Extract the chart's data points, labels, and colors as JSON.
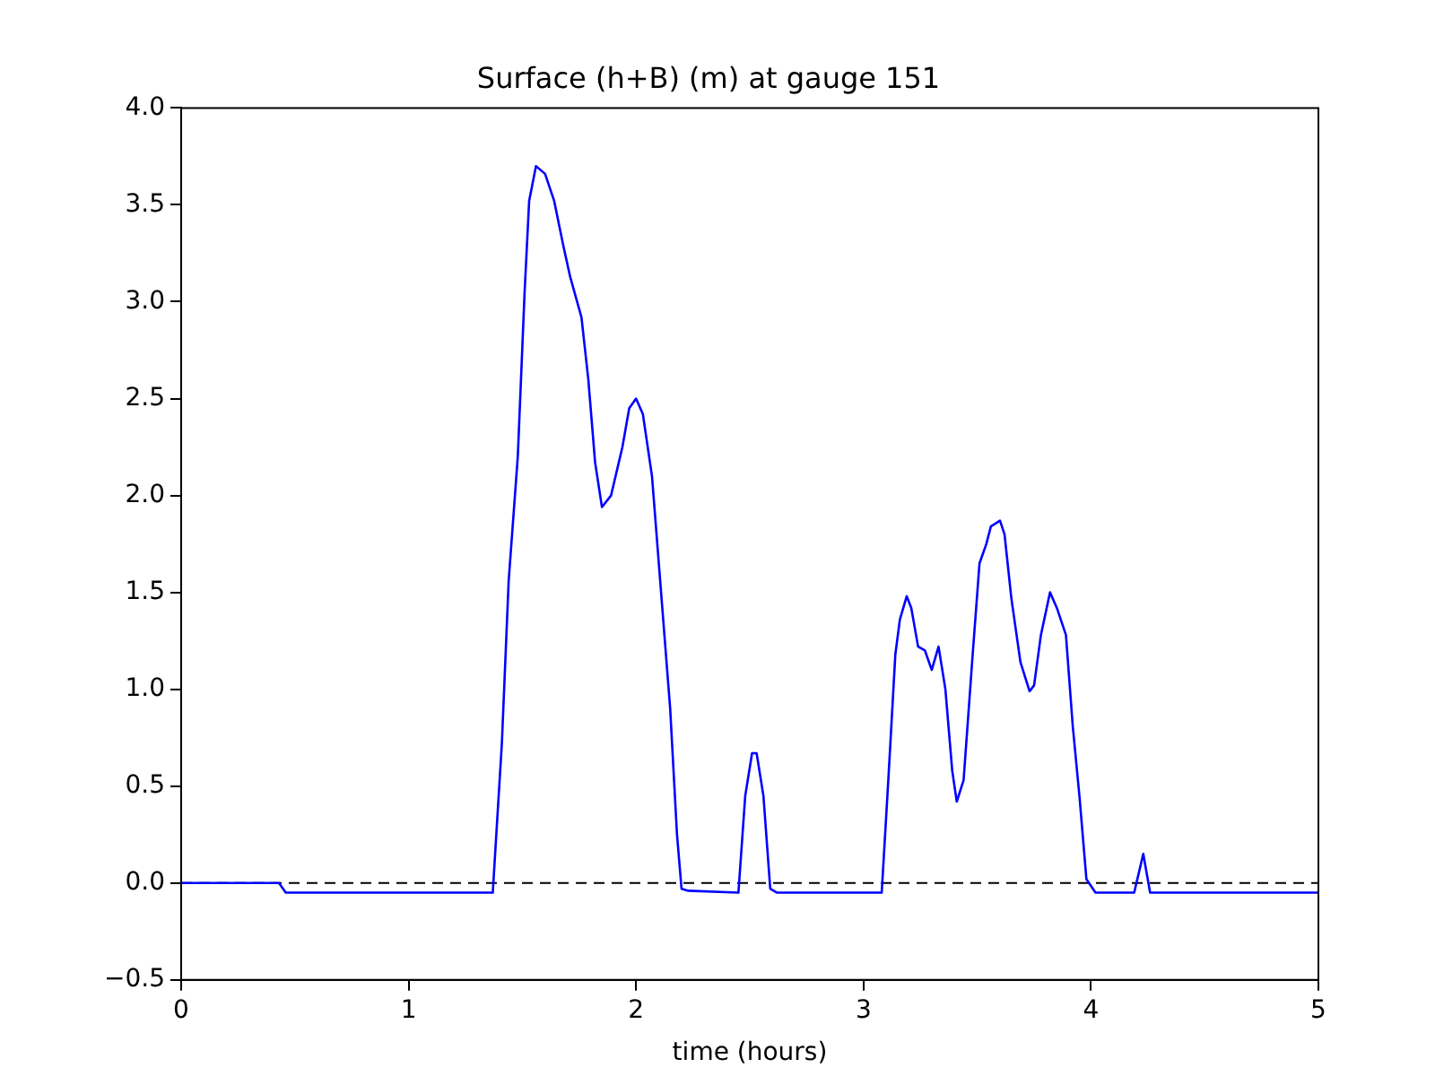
{
  "chart_data": {
    "type": "line",
    "title": "Surface (h+B) (m) at gauge 151",
    "xlabel": "time (hours)",
    "xlim": [
      0,
      5
    ],
    "xticks": [
      0,
      1,
      2,
      3,
      4,
      5
    ],
    "ylim": [
      -0.5,
      4.0
    ],
    "yticks": [
      {
        "value": -0.5,
        "label": "−0.5"
      },
      {
        "value": 0,
        "label": "0.0"
      },
      {
        "value": 0.5,
        "label": "0.5"
      },
      {
        "value": 1,
        "label": "1.0"
      },
      {
        "value": 1.5,
        "label": "1.5"
      },
      {
        "value": 2,
        "label": "2.0"
      },
      {
        "value": 2.5,
        "label": "2.5"
      },
      {
        "value": 3,
        "label": "3.0"
      },
      {
        "value": 3.5,
        "label": "3.5"
      },
      {
        "value": 4,
        "label": "4.0"
      }
    ],
    "grid": false,
    "legend": false,
    "marker": "none",
    "line_style": "solid",
    "ref_lines": [
      {
        "axis": "y",
        "value": 0,
        "color": "#000000",
        "line_style": "dashed"
      }
    ],
    "series": [
      {
        "color": "#0000ff",
        "x": [
          0,
          0.43,
          0.46,
          1.37,
          1.41,
          1.44,
          1.48,
          1.51,
          1.53,
          1.56,
          1.6,
          1.64,
          1.68,
          1.71,
          1.76,
          1.79,
          1.82,
          1.85,
          1.89,
          1.94,
          1.97,
          2.0,
          2.03,
          2.07,
          2.1,
          2.15,
          2.18,
          2.2,
          2.23,
          2.45,
          2.48,
          2.51,
          2.53,
          2.56,
          2.59,
          2.62,
          3.08,
          3.11,
          3.14,
          3.16,
          3.19,
          3.21,
          3.24,
          3.27,
          3.3,
          3.33,
          3.36,
          3.39,
          3.41,
          3.44,
          3.48,
          3.51,
          3.54,
          3.56,
          3.6,
          3.62,
          3.65,
          3.69,
          3.73,
          3.75,
          3.78,
          3.82,
          3.85,
          3.89,
          3.92,
          3.95,
          3.98,
          4.02,
          4.19,
          4.23,
          4.26,
          5
        ],
        "values": [
          0,
          0,
          -0.05,
          -0.05,
          0.72,
          1.56,
          2.2,
          3.05,
          3.52,
          3.7,
          3.66,
          3.52,
          3.29,
          3.13,
          2.92,
          2.6,
          2.17,
          1.94,
          2.0,
          2.25,
          2.45,
          2.5,
          2.42,
          2.1,
          1.65,
          0.9,
          0.25,
          -0.03,
          -0.04,
          -0.05,
          0.45,
          0.67,
          0.67,
          0.45,
          -0.03,
          -0.05,
          -0.05,
          0.55,
          1.18,
          1.36,
          1.48,
          1.42,
          1.22,
          1.2,
          1.1,
          1.22,
          1.0,
          0.58,
          0.42,
          0.53,
          1.18,
          1.65,
          1.75,
          1.84,
          1.87,
          1.8,
          1.47,
          1.14,
          0.99,
          1.02,
          1.28,
          1.5,
          1.42,
          1.28,
          0.81,
          0.44,
          0.02,
          -0.05,
          -0.05,
          0.15,
          -0.05,
          -0.05
        ]
      }
    ]
  }
}
